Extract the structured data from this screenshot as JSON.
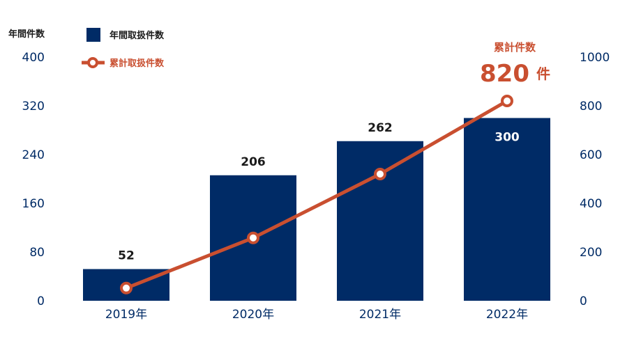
{
  "chart_data": {
    "type": "bar",
    "categories": [
      "2019年",
      "2020年",
      "2021年",
      "2022年"
    ],
    "series": [
      {
        "name": "年間取扱件数",
        "type": "bar",
        "axis": "left",
        "values": [
          52,
          206,
          262,
          300
        ],
        "color": "#002b66"
      },
      {
        "name": "累計取扱件数",
        "type": "line",
        "axis": "right",
        "values": [
          52,
          258,
          520,
          820
        ],
        "color": "#c94f30"
      }
    ],
    "y_left": {
      "label": "年間件数",
      "ticks": [
        0,
        80,
        160,
        240,
        320,
        400
      ],
      "range": [
        0,
        400
      ]
    },
    "y_right": {
      "label": "",
      "ticks": [
        0,
        200,
        400,
        600,
        800,
        1000
      ],
      "range": [
        0,
        1000
      ]
    },
    "data_labels": [
      "52",
      "206",
      "262",
      "300"
    ],
    "callout": {
      "title": "累計件数",
      "value": "820",
      "unit": "件"
    },
    "grid": false,
    "legend": "top-left"
  },
  "colors": {
    "bar": "#002b66",
    "line": "#c94f30",
    "tick_text": "#002b66",
    "title_text": "#1a1a1a"
  }
}
